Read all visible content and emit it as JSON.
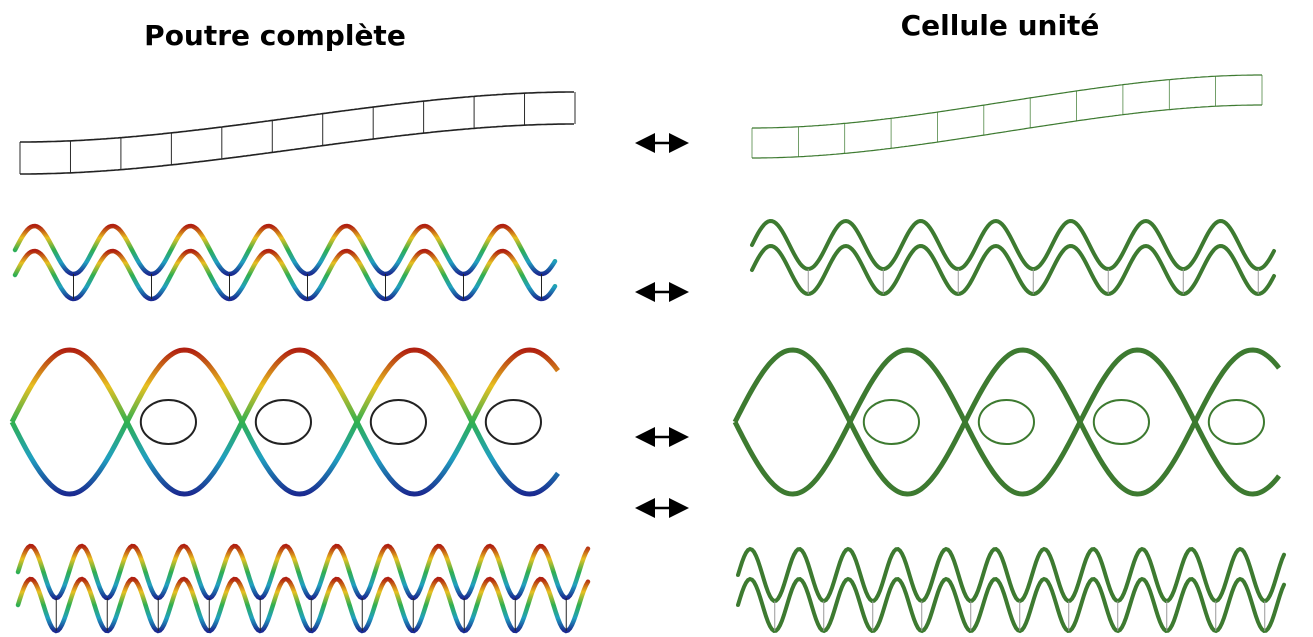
{
  "header": {
    "left_title": "Poutre complète",
    "right_title": "Cellule unité"
  }
}
